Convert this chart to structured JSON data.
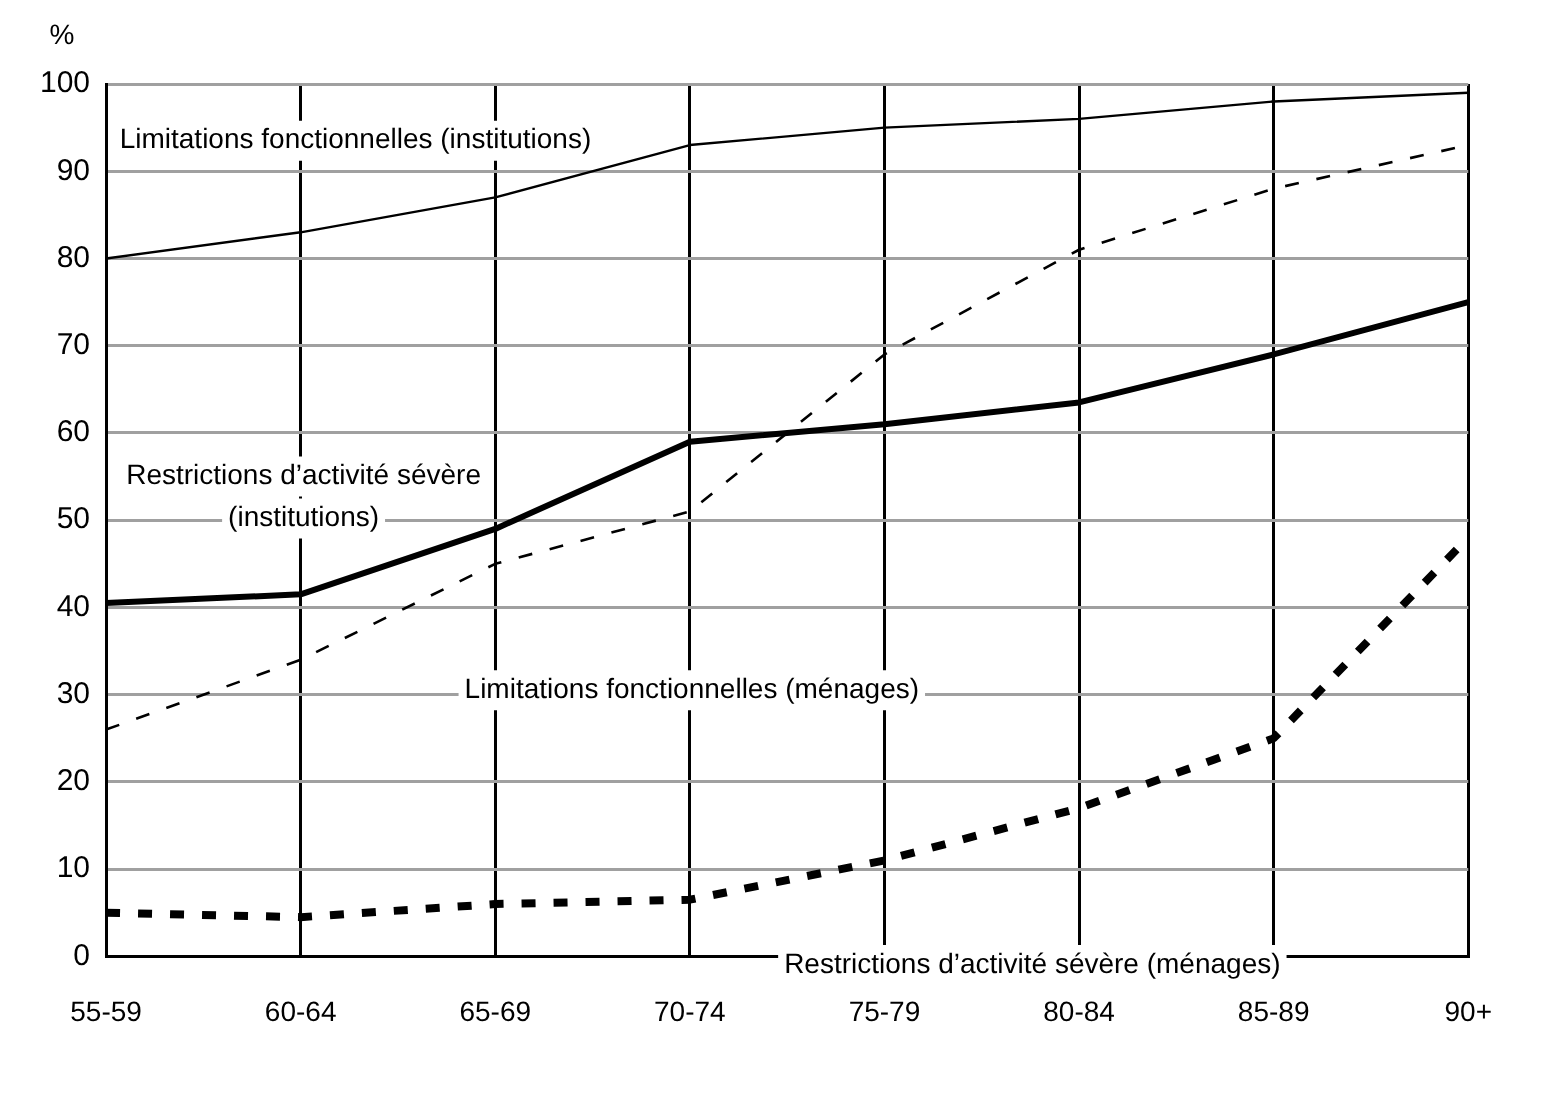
{
  "chart_data": {
    "type": "line",
    "ylabel": "%",
    "categories": [
      "55-59",
      "60-64",
      "65-69",
      "70-74",
      "75-79",
      "80-84",
      "85-89",
      "90+"
    ],
    "series": [
      {
        "name": "Limitations fonctionnelles (institutions)",
        "color": "#000000",
        "line_style": "solid",
        "values": [
          80,
          83,
          87,
          93,
          95,
          96,
          98,
          99
        ]
      },
      {
        "name": "Restrictions d’activité sévère (institutions)",
        "color": "#000000",
        "line_style": "solid",
        "values": [
          40.5,
          41.5,
          49,
          59,
          61,
          63.5,
          69,
          75
        ]
      },
      {
        "name": "Limitations fonctionnelles (ménages)",
        "color": "#000000",
        "line_style": "dashed",
        "values": [
          26,
          34,
          45,
          51,
          69,
          81,
          88,
          93
        ]
      },
      {
        "name": "Restrictions d’activité sévère (ménages)",
        "color": "#000000",
        "line_style": "dashed",
        "values": [
          5,
          4.5,
          6,
          6.5,
          11,
          17,
          25,
          48
        ]
      }
    ],
    "ylim": [
      0,
      100
    ],
    "yticks": [
      0,
      10,
      20,
      30,
      40,
      50,
      60,
      70,
      80,
      90,
      100
    ],
    "grid": true,
    "legend": false,
    "marker": "none"
  }
}
